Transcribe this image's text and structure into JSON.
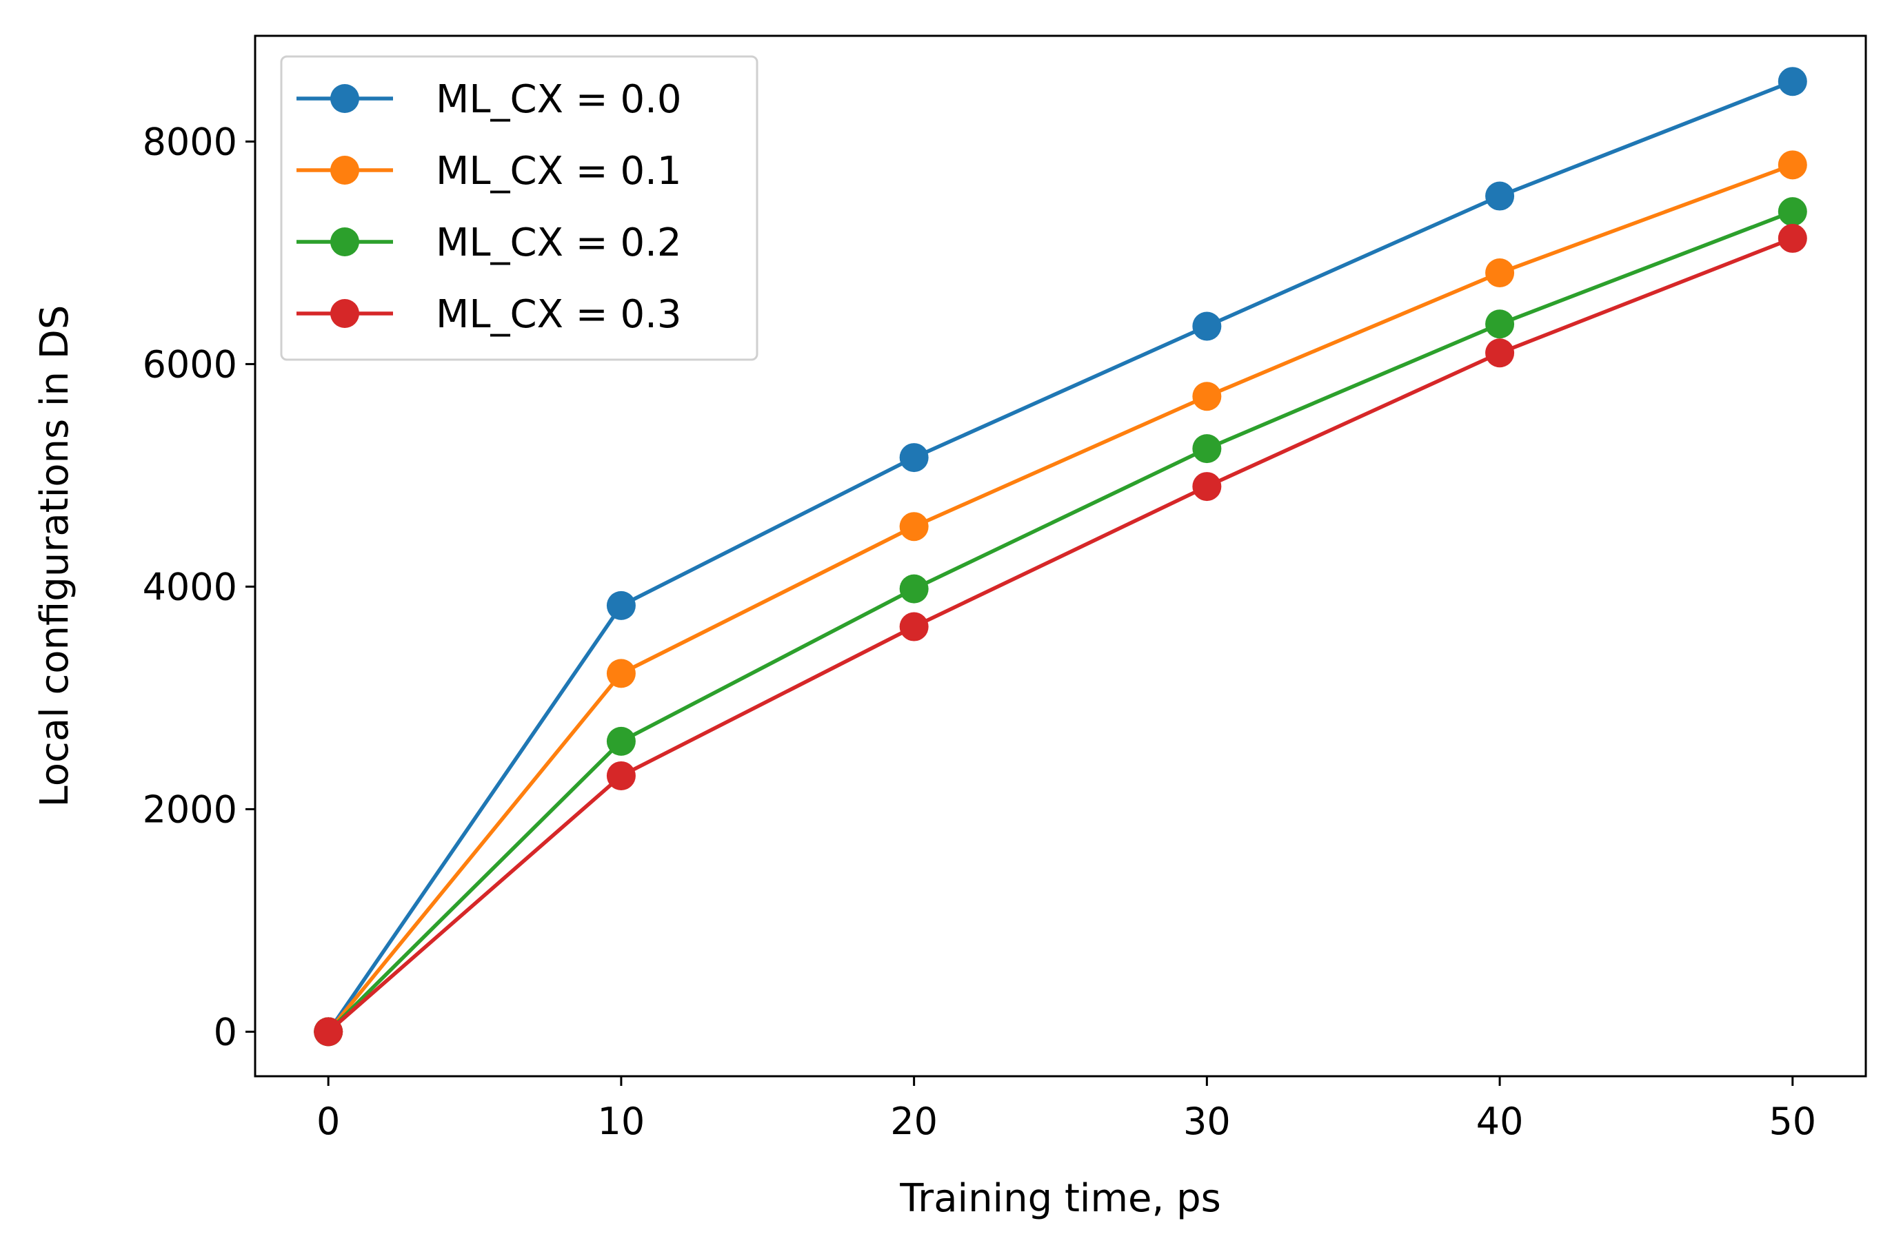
{
  "chart_data": {
    "type": "line",
    "title": "",
    "xlabel": "Training time, ps",
    "ylabel": "Local configurations in DS",
    "x": [
      0,
      10,
      20,
      30,
      40,
      50
    ],
    "xlim": [
      -2.5,
      52.5
    ],
    "ylim": [
      -400,
      8950
    ],
    "xticks": [
      0,
      10,
      20,
      30,
      40,
      50
    ],
    "yticks": [
      0,
      2000,
      4000,
      6000,
      8000
    ],
    "grid": false,
    "legend_position": "top-left",
    "series": [
      {
        "name": "ML_CX = 0.0",
        "color": "#1f77b4",
        "values": [
          0,
          3830,
          5160,
          6340,
          7510,
          8540
        ]
      },
      {
        "name": "ML_CX = 0.1",
        "color": "#ff7f0e",
        "values": [
          0,
          3220,
          4540,
          5710,
          6820,
          7790
        ]
      },
      {
        "name": "ML_CX = 0.2",
        "color": "#2ca02c",
        "values": [
          0,
          2610,
          3980,
          5240,
          6360,
          7370
        ]
      },
      {
        "name": "ML_CX = 0.3",
        "color": "#d62728",
        "values": [
          0,
          2300,
          3640,
          4900,
          6100,
          7130
        ]
      }
    ]
  }
}
